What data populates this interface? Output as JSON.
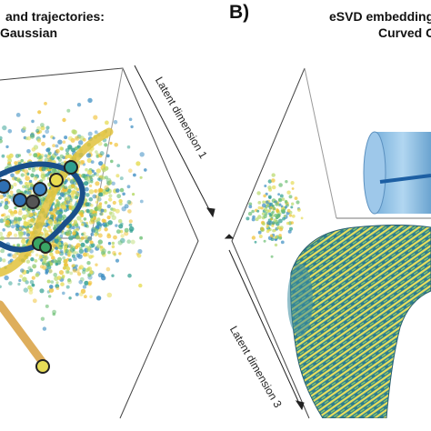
{
  "panel_a": {
    "title_line1": "and trajectories:",
    "title_line2": "Gaussian"
  },
  "panel_b": {
    "letter": "B)",
    "title_line1": "eSVD embedding",
    "title_line2": "Curved G"
  },
  "axes": {
    "dim1": "Latent dimension 1",
    "dim3": "Latent dimension 3"
  },
  "colors": {
    "cell_cloud": [
      "#3b8dc2",
      "#2e9e8f",
      "#6cbf73",
      "#b7d96a",
      "#e6dc57",
      "#f0c030"
    ],
    "trajectory": "#1a4f8a",
    "tube_body": "#2f7f92",
    "tube_stripe": "#f0e25a",
    "cylinder": "#9cc8e8"
  }
}
